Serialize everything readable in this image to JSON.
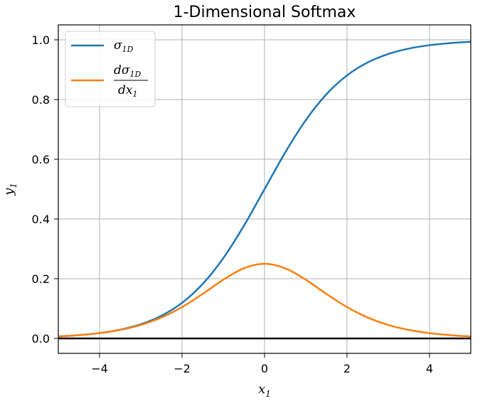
{
  "chart_data": {
    "type": "line",
    "title": "1-Dimensional Softmax",
    "xlabel": {
      "base": "x",
      "sub": "1"
    },
    "ylabel": {
      "base": "y",
      "sub": "1"
    },
    "xlim": [
      -5,
      5
    ],
    "ylim": [
      -0.05,
      1.05
    ],
    "xticks": [
      -4,
      -2,
      0,
      2,
      4
    ],
    "xtick_labels": [
      "−4",
      "−2",
      "0",
      "2",
      "4"
    ],
    "yticks": [
      0.0,
      0.2,
      0.4,
      0.6,
      0.8,
      1.0
    ],
    "ytick_labels": [
      "0.0",
      "0.2",
      "0.4",
      "0.6",
      "0.8",
      "1.0"
    ],
    "grid": true,
    "legend_position": "top-left",
    "hline": {
      "y": 0,
      "color": "#000000"
    },
    "x": [
      -5.0,
      -4.5,
      -4.0,
      -3.5,
      -3.0,
      -2.5,
      -2.0,
      -1.5,
      -1.0,
      -0.5,
      0.0,
      0.5,
      1.0,
      1.5,
      2.0,
      2.5,
      3.0,
      3.5,
      4.0,
      4.5,
      5.0
    ],
    "series": [
      {
        "name": "sigma_1D",
        "legend": {
          "base": "σ",
          "sub": "1D"
        },
        "color": "#1f77b4",
        "values": [
          0.0067,
          0.011,
          0.018,
          0.0293,
          0.0474,
          0.0759,
          0.1192,
          0.1824,
          0.2689,
          0.3775,
          0.5,
          0.6225,
          0.7311,
          0.8176,
          0.8808,
          0.9241,
          0.9526,
          0.9707,
          0.982,
          0.989,
          0.9933
        ]
      },
      {
        "name": "d sigma_1D / d x_1",
        "legend": {
          "num": "dσ",
          "num_sub": "1D",
          "den": "dx",
          "den_sub": "1"
        },
        "color": "#ff7f0e",
        "values": [
          0.0066,
          0.0109,
          0.0177,
          0.0285,
          0.0452,
          0.0701,
          0.105,
          0.1491,
          0.1966,
          0.235,
          0.25,
          0.235,
          0.1966,
          0.1491,
          0.105,
          0.0701,
          0.0452,
          0.0285,
          0.0177,
          0.0109,
          0.0066
        ]
      }
    ]
  }
}
